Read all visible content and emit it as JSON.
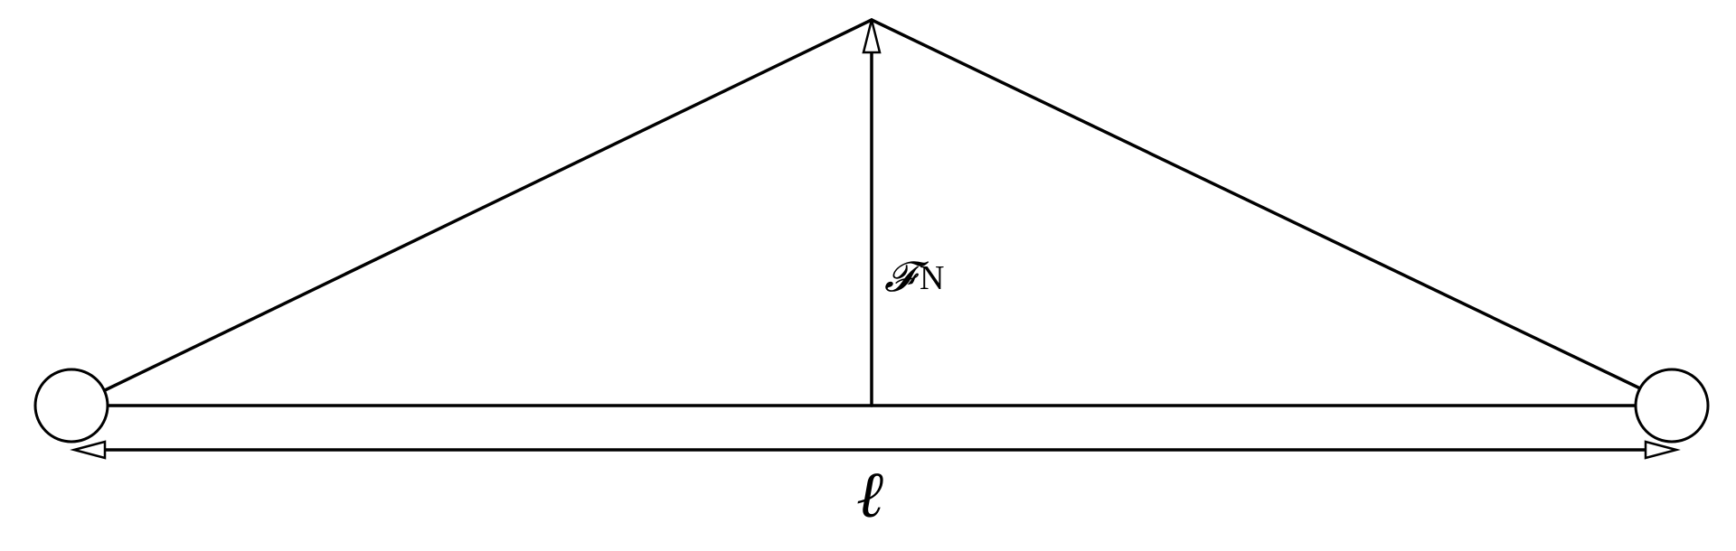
{
  "diagram": {
    "force_symbol": "𝓕",
    "force_unit": "N",
    "span_symbol": "ℓ",
    "color": "#000000"
  }
}
